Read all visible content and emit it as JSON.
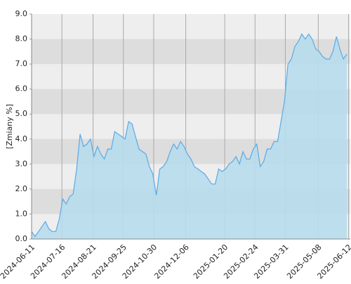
{
  "chart_data": {
    "type": "area",
    "y_label": "[Zmiany %]",
    "color": "#5aaae6",
    "fill": "#b7dcec",
    "grid": true,
    "ylim": [
      0,
      9
    ],
    "yticks": [
      {
        "value": 0,
        "label": "0.0"
      },
      {
        "value": 1,
        "label": "1.0"
      },
      {
        "value": 2,
        "label": "2.0"
      },
      {
        "value": 3,
        "label": "3.0"
      },
      {
        "value": 4,
        "label": "4.0"
      },
      {
        "value": 5,
        "label": "5.0"
      },
      {
        "value": 6,
        "label": "6.0"
      },
      {
        "value": 7,
        "label": "7.0"
      },
      {
        "value": 8,
        "label": "8.0"
      },
      {
        "value": 9,
        "label": "9.0"
      }
    ],
    "xlim": [
      "2024-06-11",
      "2025-06-14"
    ],
    "xticks": [
      "2024-06-11",
      "2024-07-16",
      "2024-08-21",
      "2024-09-25",
      "2024-10-30",
      "2024-12-06",
      "2025-01-20",
      "2025-02-24",
      "2025-03-31",
      "2025-05-08",
      "2025-06-12"
    ],
    "x": [
      "2024-06-11",
      "2024-06-15",
      "2024-06-19",
      "2024-06-23",
      "2024-06-27",
      "2024-07-01",
      "2024-07-05",
      "2024-07-09",
      "2024-07-13",
      "2024-07-17",
      "2024-07-21",
      "2024-07-25",
      "2024-07-29",
      "2024-08-02",
      "2024-08-06",
      "2024-08-10",
      "2024-08-14",
      "2024-08-18",
      "2024-08-22",
      "2024-08-26",
      "2024-08-30",
      "2024-09-03",
      "2024-09-07",
      "2024-09-11",
      "2024-09-15",
      "2024-09-19",
      "2024-09-23",
      "2024-09-27",
      "2024-10-01",
      "2024-10-05",
      "2024-10-09",
      "2024-10-13",
      "2024-10-17",
      "2024-10-21",
      "2024-10-25",
      "2024-10-29",
      "2024-11-02",
      "2024-11-06",
      "2024-11-10",
      "2024-11-14",
      "2024-11-18",
      "2024-11-22",
      "2024-11-26",
      "2024-11-30",
      "2024-12-04",
      "2024-12-08",
      "2024-12-12",
      "2024-12-16",
      "2024-12-20",
      "2024-12-24",
      "2024-12-28",
      "2025-01-01",
      "2025-01-05",
      "2025-01-09",
      "2025-01-13",
      "2025-01-17",
      "2025-01-21",
      "2025-01-25",
      "2025-01-29",
      "2025-02-02",
      "2025-02-06",
      "2025-02-10",
      "2025-02-14",
      "2025-02-18",
      "2025-02-22",
      "2025-02-26",
      "2025-03-02",
      "2025-03-06",
      "2025-03-10",
      "2025-03-14",
      "2025-03-18",
      "2025-03-22",
      "2025-03-26",
      "2025-03-30",
      "2025-04-03",
      "2025-04-07",
      "2025-04-11",
      "2025-04-15",
      "2025-04-19",
      "2025-04-23",
      "2025-04-27",
      "2025-05-01",
      "2025-05-05",
      "2025-05-09",
      "2025-05-13",
      "2025-05-17",
      "2025-05-21",
      "2025-05-25",
      "2025-05-29",
      "2025-06-02",
      "2025-06-06",
      "2025-06-10"
    ],
    "values": [
      0.3,
      0.1,
      0.3,
      0.5,
      0.7,
      0.4,
      0.3,
      0.3,
      0.8,
      1.6,
      1.4,
      1.7,
      1.8,
      2.8,
      4.2,
      3.7,
      3.8,
      4.0,
      3.3,
      3.7,
      3.4,
      3.2,
      3.6,
      3.6,
      4.3,
      4.2,
      4.1,
      4.0,
      4.7,
      4.6,
      4.1,
      3.6,
      3.5,
      3.4,
      2.9,
      2.6,
      1.75,
      2.8,
      2.9,
      3.1,
      3.5,
      3.8,
      3.6,
      3.9,
      3.7,
      3.4,
      3.2,
      2.9,
      2.8,
      2.7,
      2.6,
      2.4,
      2.2,
      2.2,
      2.8,
      2.7,
      2.8,
      3.0,
      3.1,
      3.3,
      3.0,
      3.5,
      3.2,
      3.2,
      3.6,
      3.8,
      2.9,
      3.1,
      3.6,
      3.6,
      3.9,
      3.9,
      4.7,
      5.5,
      7.0,
      7.2,
      7.7,
      7.9,
      8.2,
      8.0,
      8.2,
      8.0,
      7.6,
      7.5,
      7.3,
      7.2,
      7.2,
      7.5,
      8.1,
      7.6,
      7.2,
      7.4
    ]
  }
}
